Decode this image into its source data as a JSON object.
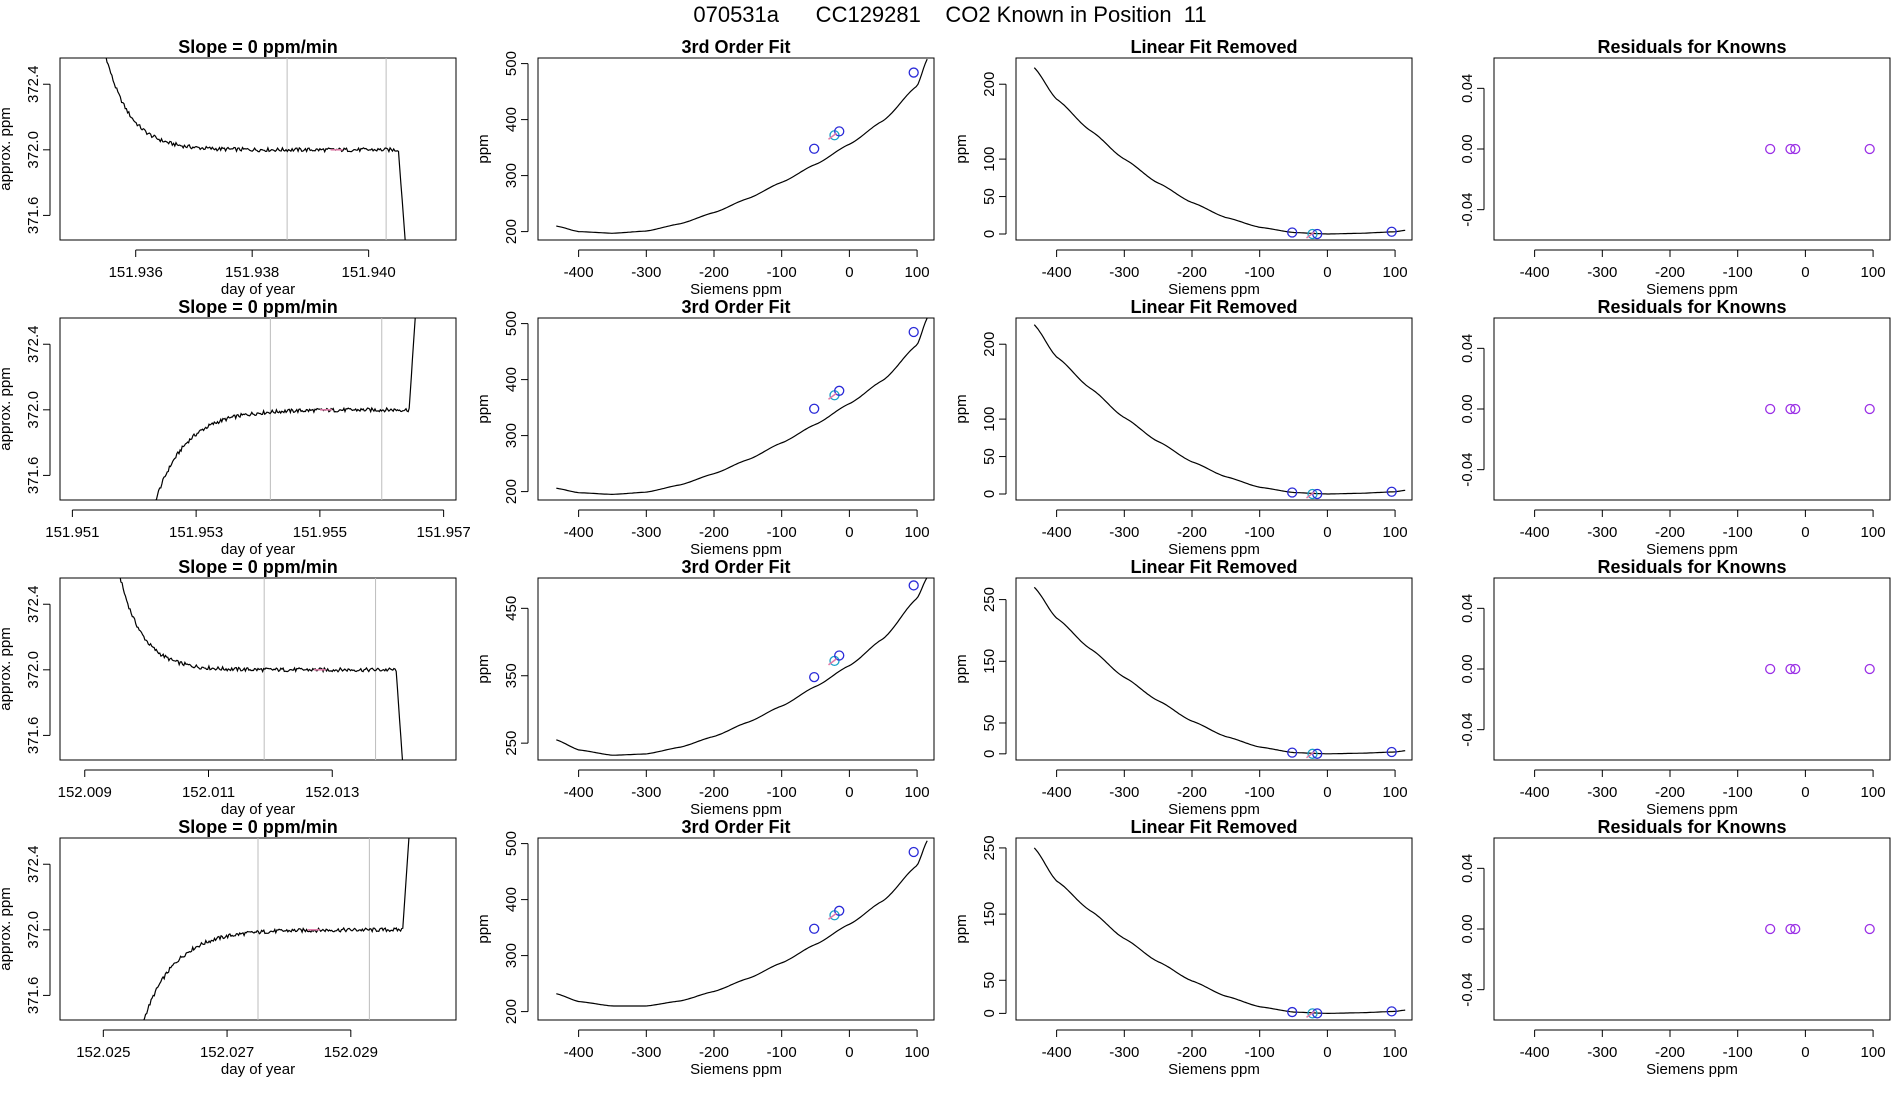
{
  "figure": {
    "main_title": "070531a      CC129281    CO2 Known in Position  11"
  },
  "colors": {
    "line": "#000000",
    "grid_vline": "#bdbdbd",
    "known_points": "#2a2ad8",
    "known_points_alt": "#1aa0c8",
    "residual_points": "#9b30e6",
    "pink_marker": "#e07aa8"
  },
  "chart_data": [
    {
      "type": "line",
      "row": 1,
      "col": 1,
      "title": "Slope =  0  ppm/min",
      "xlabel": "day of year",
      "ylabel": "approx. ppm",
      "xlim": [
        151.9347,
        151.9415
      ],
      "ylim": [
        371.45,
        372.56
      ],
      "xticks": [
        151.936,
        151.938,
        151.94
      ],
      "xtick_labels": [
        "151.936",
        "151.938",
        "151.940"
      ],
      "yticks": [
        371.6,
        372.0,
        372.4
      ],
      "ytick_labels": [
        "371.6",
        "372.0",
        "372.4"
      ],
      "vlines": [
        151.9386,
        151.9403
      ],
      "trace_shape": "falling",
      "trace_start": 151.9353,
      "trace_end": 151.9407
    },
    {
      "type": "line",
      "row": 1,
      "col": 2,
      "title": "3rd Order Fit",
      "xlabel": "Siemens ppm",
      "ylabel": "ppm",
      "xlim": [
        -460,
        125
      ],
      "ylim": [
        185,
        510
      ],
      "xticks": [
        -400,
        -300,
        -200,
        -100,
        0,
        100
      ],
      "xtick_labels": [
        "-400",
        "-300",
        "-200",
        "-100",
        "0",
        "100"
      ],
      "yticks": [
        200,
        300,
        400,
        500
      ],
      "ytick_labels": [
        "200",
        "300",
        "400",
        "500"
      ],
      "curve_x": [
        -433,
        -400,
        -350,
        -300,
        -250,
        -200,
        -150,
        -100,
        -50,
        0,
        50,
        100,
        115
      ],
      "curve_y": [
        210,
        200,
        197,
        201,
        214,
        234,
        259,
        288,
        320,
        356,
        398,
        460,
        508
      ],
      "points": [
        {
          "x": -52,
          "y": 348
        },
        {
          "x": -22,
          "y": 372
        },
        {
          "x": -15,
          "y": 379
        },
        {
          "x": 95,
          "y": 484
        }
      ]
    },
    {
      "type": "line",
      "row": 1,
      "col": 3,
      "title": "Linear Fit Removed",
      "xlabel": "Siemens ppm",
      "ylabel": "ppm",
      "xlim": [
        -460,
        125
      ],
      "ylim": [
        -8,
        235
      ],
      "xticks": [
        -400,
        -300,
        -200,
        -100,
        0,
        100
      ],
      "xtick_labels": [
        "-400",
        "-300",
        "-200",
        "-100",
        "0",
        "100"
      ],
      "yticks": [
        0,
        50,
        100,
        200
      ],
      "ytick_labels": [
        "0",
        "50",
        "100",
        "200"
      ],
      "curve_x": [
        -433,
        -400,
        -350,
        -300,
        -250,
        -200,
        -150,
        -100,
        -50,
        0,
        50,
        100,
        115
      ],
      "curve_y": [
        222,
        180,
        138,
        100,
        68,
        42,
        22,
        9,
        2,
        0,
        1,
        3,
        5
      ],
      "points": [
        {
          "x": -52,
          "y": 2
        },
        {
          "x": -22,
          "y": 0
        },
        {
          "x": -15,
          "y": 0
        },
        {
          "x": 95,
          "y": 3
        }
      ]
    },
    {
      "type": "scatter",
      "row": 1,
      "col": 4,
      "title": "Residuals for Knowns",
      "xlabel": "Siemens ppm",
      "ylabel": "",
      "xlim": [
        -460,
        125
      ],
      "ylim": [
        -0.06,
        0.06
      ],
      "xticks": [
        -400,
        -300,
        -200,
        -100,
        0,
        100
      ],
      "xtick_labels": [
        "-400",
        "-300",
        "-200",
        "-100",
        "0",
        "100"
      ],
      "yticks": [
        -0.04,
        0.0,
        0.04
      ],
      "ytick_labels": [
        "-0.04",
        "0.00",
        "0.04"
      ],
      "points": [
        {
          "x": -52,
          "y": 0
        },
        {
          "x": -22,
          "y": 0
        },
        {
          "x": -15,
          "y": 0
        },
        {
          "x": 95,
          "y": 0
        }
      ]
    },
    {
      "type": "line",
      "row": 2,
      "col": 1,
      "title": "Slope =  0  ppm/min",
      "xlabel": "day of year",
      "ylabel": "approx. ppm",
      "xlim": [
        151.9508,
        151.9572
      ],
      "ylim": [
        371.45,
        372.56
      ],
      "xticks": [
        151.951,
        151.953,
        151.955,
        151.957
      ],
      "xtick_labels": [
        "151.951",
        "151.953",
        "151.955",
        "151.957"
      ],
      "yticks": [
        371.6,
        372.0,
        372.4
      ],
      "ytick_labels": [
        "371.6",
        "372.0",
        "372.4"
      ],
      "vlines": [
        151.9542,
        151.956
      ],
      "trace_shape": "rising",
      "trace_start": 151.9521,
      "trace_end": 151.9566
    },
    {
      "type": "line",
      "row": 2,
      "col": 2,
      "title": "3rd Order Fit",
      "xlabel": "Siemens ppm",
      "ylabel": "ppm",
      "xlim": [
        -460,
        125
      ],
      "ylim": [
        185,
        510
      ],
      "xticks": [
        -400,
        -300,
        -200,
        -100,
        0,
        100
      ],
      "xtick_labels": [
        "-400",
        "-300",
        "-200",
        "-100",
        "0",
        "100"
      ],
      "yticks": [
        200,
        300,
        400,
        500
      ],
      "ytick_labels": [
        "200",
        "300",
        "400",
        "500"
      ],
      "curve_x": [
        -433,
        -400,
        -350,
        -300,
        -250,
        -200,
        -150,
        -100,
        -50,
        0,
        50,
        100,
        115
      ],
      "curve_y": [
        206,
        198,
        195,
        199,
        212,
        232,
        257,
        287,
        320,
        357,
        399,
        462,
        510
      ],
      "points": [
        {
          "x": -52,
          "y": 348
        },
        {
          "x": -22,
          "y": 372
        },
        {
          "x": -15,
          "y": 380
        },
        {
          "x": 95,
          "y": 485
        }
      ]
    },
    {
      "type": "line",
      "row": 2,
      "col": 3,
      "title": "Linear Fit Removed",
      "xlabel": "Siemens ppm",
      "ylabel": "ppm",
      "xlim": [
        -460,
        125
      ],
      "ylim": [
        -8,
        235
      ],
      "xticks": [
        -400,
        -300,
        -200,
        -100,
        0,
        100
      ],
      "xtick_labels": [
        "-400",
        "-300",
        "-200",
        "-100",
        "0",
        "100"
      ],
      "yticks": [
        0,
        50,
        100,
        200
      ],
      "ytick_labels": [
        "0",
        "50",
        "100",
        "200"
      ],
      "curve_x": [
        -433,
        -400,
        -350,
        -300,
        -250,
        -200,
        -150,
        -100,
        -50,
        0,
        50,
        100,
        115
      ],
      "curve_y": [
        226,
        183,
        141,
        102,
        70,
        43,
        23,
        9,
        2,
        0,
        1,
        3,
        5
      ],
      "points": [
        {
          "x": -52,
          "y": 2
        },
        {
          "x": -22,
          "y": 0
        },
        {
          "x": -15,
          "y": 0
        },
        {
          "x": 95,
          "y": 3
        }
      ]
    },
    {
      "type": "scatter",
      "row": 2,
      "col": 4,
      "title": "Residuals for Knowns",
      "xlabel": "Siemens ppm",
      "ylabel": "",
      "xlim": [
        -460,
        125
      ],
      "ylim": [
        -0.06,
        0.06
      ],
      "xticks": [
        -400,
        -300,
        -200,
        -100,
        0,
        100
      ],
      "xtick_labels": [
        "-400",
        "-300",
        "-200",
        "-100",
        "0",
        "100"
      ],
      "yticks": [
        -0.04,
        0.0,
        0.04
      ],
      "ytick_labels": [
        "-0.04",
        "0.00",
        "0.04"
      ],
      "points": [
        {
          "x": -52,
          "y": 0
        },
        {
          "x": -22,
          "y": 0
        },
        {
          "x": -15,
          "y": 0
        },
        {
          "x": 95,
          "y": 0
        }
      ]
    },
    {
      "type": "line",
      "row": 3,
      "col": 1,
      "title": "Slope =  0  ppm/min",
      "xlabel": "day of year",
      "ylabel": "approx. ppm",
      "xlim": [
        152.0086,
        152.015
      ],
      "ylim": [
        371.45,
        372.56
      ],
      "xticks": [
        152.009,
        152.011,
        152.013
      ],
      "xtick_labels": [
        "152.009",
        "152.011",
        "152.013"
      ],
      "yticks": [
        371.6,
        372.0,
        372.4
      ],
      "ytick_labels": [
        "371.6",
        "372.0",
        "372.4"
      ],
      "vlines": [
        152.0119,
        152.0137
      ],
      "trace_shape": "falling",
      "trace_start": 152.0094,
      "trace_end": 152.0142
    },
    {
      "type": "line",
      "row": 3,
      "col": 2,
      "title": "3rd Order Fit",
      "xlabel": "Siemens ppm",
      "ylabel": "ppm",
      "xlim": [
        -460,
        125
      ],
      "ylim": [
        225,
        495
      ],
      "xticks": [
        -400,
        -300,
        -200,
        -100,
        0,
        100
      ],
      "xtick_labels": [
        "-400",
        "-300",
        "-200",
        "-100",
        "0",
        "100"
      ],
      "yticks": [
        250,
        350,
        450
      ],
      "ytick_labels": [
        "250",
        "350",
        "450"
      ],
      "curve_x": [
        -433,
        -400,
        -350,
        -300,
        -250,
        -200,
        -150,
        -100,
        -50,
        0,
        50,
        100,
        115
      ],
      "curve_y": [
        255,
        240,
        232,
        234,
        244,
        260,
        281,
        305,
        334,
        365,
        405,
        465,
        496
      ],
      "points": [
        {
          "x": -52,
          "y": 348
        },
        {
          "x": -22,
          "y": 372
        },
        {
          "x": -15,
          "y": 380
        },
        {
          "x": 95,
          "y": 484
        }
      ]
    },
    {
      "type": "line",
      "row": 3,
      "col": 3,
      "title": "Linear Fit Removed",
      "xlabel": "Siemens ppm",
      "ylabel": "ppm",
      "xlim": [
        -460,
        125
      ],
      "ylim": [
        -10,
        285
      ],
      "xticks": [
        -400,
        -300,
        -200,
        -100,
        0,
        100
      ],
      "xtick_labels": [
        "-400",
        "-300",
        "-200",
        "-100",
        "0",
        "100"
      ],
      "yticks": [
        0,
        50,
        150,
        250
      ],
      "ytick_labels": [
        "0",
        "50",
        "150",
        "250"
      ],
      "curve_x": [
        -433,
        -400,
        -350,
        -300,
        -250,
        -200,
        -150,
        -100,
        -50,
        0,
        50,
        100,
        115
      ],
      "curve_y": [
        270,
        220,
        170,
        124,
        86,
        53,
        28,
        11,
        2,
        0,
        1,
        3,
        5
      ],
      "points": [
        {
          "x": -52,
          "y": 2
        },
        {
          "x": -22,
          "y": 0
        },
        {
          "x": -15,
          "y": 0
        },
        {
          "x": 95,
          "y": 3
        }
      ]
    },
    {
      "type": "scatter",
      "row": 3,
      "col": 4,
      "title": "Residuals for Knowns",
      "xlabel": "Siemens ppm",
      "ylabel": "",
      "xlim": [
        -460,
        125
      ],
      "ylim": [
        -0.06,
        0.06
      ],
      "xticks": [
        -400,
        -300,
        -200,
        -100,
        0,
        100
      ],
      "xtick_labels": [
        "-400",
        "-300",
        "-200",
        "-100",
        "0",
        "100"
      ],
      "yticks": [
        -0.04,
        0.0,
        0.04
      ],
      "ytick_labels": [
        "-0.04",
        "0.00",
        "0.04"
      ],
      "points": [
        {
          "x": -52,
          "y": 0
        },
        {
          "x": -22,
          "y": 0
        },
        {
          "x": -15,
          "y": 0
        },
        {
          "x": 95,
          "y": 0
        }
      ]
    },
    {
      "type": "line",
      "row": 4,
      "col": 1,
      "title": "Slope =  0  ppm/min",
      "xlabel": "day of year",
      "ylabel": "approx. ppm",
      "xlim": [
        152.0243,
        152.0307
      ],
      "ylim": [
        371.45,
        372.56
      ],
      "xticks": [
        152.025,
        152.027,
        152.029
      ],
      "xtick_labels": [
        "152.025",
        "152.027",
        "152.029"
      ],
      "yticks": [
        371.6,
        372.0,
        372.4
      ],
      "ytick_labels": [
        "371.6",
        "372.0",
        "372.4"
      ],
      "vlines": [
        152.0275,
        152.0293
      ],
      "trace_shape": "rising",
      "trace_start": 152.0254,
      "trace_end": 152.03
    },
    {
      "type": "line",
      "row": 4,
      "col": 2,
      "title": "3rd Order Fit",
      "xlabel": "Siemens ppm",
      "ylabel": "ppm",
      "xlim": [
        -460,
        125
      ],
      "ylim": [
        185,
        510
      ],
      "xticks": [
        -400,
        -300,
        -200,
        -100,
        0,
        100
      ],
      "xtick_labels": [
        "-400",
        "-300",
        "-200",
        "-100",
        "0",
        "100"
      ],
      "yticks": [
        200,
        300,
        400,
        500
      ],
      "ytick_labels": [
        "200",
        "300",
        "400",
        "500"
      ],
      "curve_x": [
        -433,
        -400,
        -350,
        -300,
        -250,
        -200,
        -150,
        -100,
        -50,
        0,
        50,
        100,
        115
      ],
      "curve_y": [
        232,
        218,
        210,
        210,
        219,
        236,
        259,
        287,
        320,
        356,
        398,
        461,
        505
      ],
      "points": [
        {
          "x": -52,
          "y": 348
        },
        {
          "x": -22,
          "y": 372
        },
        {
          "x": -15,
          "y": 380
        },
        {
          "x": 95,
          "y": 485
        }
      ]
    },
    {
      "type": "line",
      "row": 4,
      "col": 3,
      "title": "Linear Fit Removed",
      "xlabel": "Siemens ppm",
      "ylabel": "ppm",
      "xlim": [
        -460,
        125
      ],
      "ylim": [
        -10,
        265
      ],
      "xticks": [
        -400,
        -300,
        -200,
        -100,
        0,
        100
      ],
      "xtick_labels": [
        "-400",
        "-300",
        "-200",
        "-100",
        "0",
        "100"
      ],
      "yticks": [
        0,
        50,
        150,
        250
      ],
      "ytick_labels": [
        "0",
        "50",
        "150",
        "250"
      ],
      "curve_x": [
        -433,
        -400,
        -350,
        -300,
        -250,
        -200,
        -150,
        -100,
        -50,
        0,
        50,
        100,
        115
      ],
      "curve_y": [
        250,
        200,
        155,
        113,
        78,
        49,
        26,
        10,
        2,
        0,
        1,
        3,
        5
      ],
      "points": [
        {
          "x": -52,
          "y": 2
        },
        {
          "x": -22,
          "y": 0
        },
        {
          "x": -15,
          "y": 0
        },
        {
          "x": 95,
          "y": 3
        }
      ]
    },
    {
      "type": "scatter",
      "row": 4,
      "col": 4,
      "title": "Residuals for Knowns",
      "xlabel": "Siemens ppm",
      "ylabel": "",
      "xlim": [
        -460,
        125
      ],
      "ylim": [
        -0.06,
        0.06
      ],
      "xticks": [
        -400,
        -300,
        -200,
        -100,
        0,
        100
      ],
      "xtick_labels": [
        "-400",
        "-300",
        "-200",
        "-100",
        "0",
        "100"
      ],
      "yticks": [
        -0.04,
        0.0,
        0.04
      ],
      "ytick_labels": [
        "-0.04",
        "0.00",
        "0.04"
      ],
      "points": [
        {
          "x": -52,
          "y": 0
        },
        {
          "x": -22,
          "y": 0
        },
        {
          "x": -15,
          "y": 0
        },
        {
          "x": 95,
          "y": 0
        }
      ]
    }
  ]
}
